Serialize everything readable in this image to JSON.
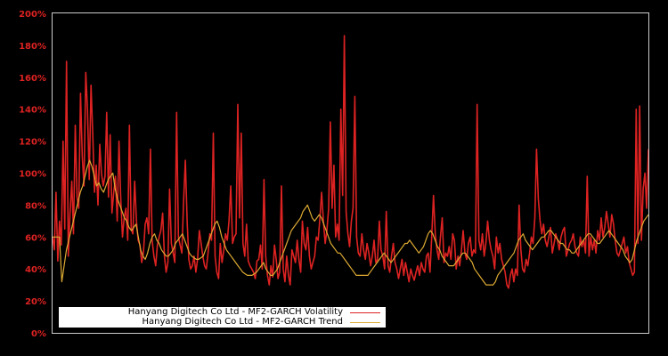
{
  "chart_data": {
    "type": "line",
    "title": "",
    "xlabel": "",
    "ylabel": "",
    "ylim": [
      0,
      200
    ],
    "y_ticks": [
      "0%",
      "20%",
      "40%",
      "60%",
      "80%",
      "100%",
      "120%",
      "140%",
      "160%",
      "180%",
      "200%"
    ],
    "x_ticks": [],
    "grid": false,
    "legend_position": "lower left",
    "background": "#000000",
    "frame_color": "#cccccc",
    "tick_label_color": "#dd2222",
    "series": [
      {
        "name": "Hanyang Digitech Co Ltd - MF2-GARCH Volatility",
        "color": "#dd2222",
        "values": [
          60,
          52,
          88,
          45,
          70,
          55,
          120,
          65,
          170,
          48,
          75,
          95,
          62,
          130,
          85,
          78,
          150,
          110,
          92,
          163,
          140,
          96,
          155,
          125,
          88,
          105,
          80,
          118,
          100,
          92,
          98,
          138,
          85,
          124,
          75,
          88,
          98,
          70,
          120,
          85,
          60,
          72,
          78,
          58,
          130,
          65,
          62,
          95,
          70,
          58,
          55,
          44,
          50,
          68,
          72,
          62,
          115,
          58,
          48,
          42,
          55,
          60,
          64,
          75,
          48,
          38,
          44,
          90,
          56,
          50,
          44,
          138,
          60,
          55,
          50,
          82,
          108,
          70,
          46,
          40,
          42,
          48,
          38,
          46,
          64,
          56,
          48,
          42,
          40,
          50,
          62,
          58,
          125,
          48,
          38,
          34,
          56,
          44,
          52,
          62,
          58,
          70,
          92,
          56,
          60,
          62,
          143,
          72,
          125,
          56,
          48,
          68,
          45,
          42,
          40,
          38,
          34,
          45,
          46,
          55,
          40,
          96,
          48,
          36,
          30,
          42,
          35,
          55,
          46,
          34,
          38,
          92,
          40,
          32,
          48,
          36,
          30,
          52,
          48,
          44,
          58,
          46,
          38,
          70,
          56,
          52,
          66,
          48,
          40,
          44,
          48,
          60,
          58,
          72,
          88,
          70,
          56,
          64,
          78,
          132,
          78,
          105,
          60,
          68,
          58,
          140,
          86,
          186,
          76,
          62,
          54,
          70,
          78,
          148,
          60,
          50,
          48,
          62,
          52,
          46,
          56,
          50,
          42,
          48,
          58,
          44,
          46,
          70,
          52,
          48,
          40,
          76,
          42,
          38,
          48,
          56,
          44,
          40,
          34,
          40,
          46,
          36,
          44,
          38,
          32,
          40,
          36,
          33,
          38,
          42,
          36,
          44,
          40,
          38,
          48,
          50,
          38,
          60,
          86,
          62,
          52,
          46,
          60,
          72,
          44,
          50,
          48,
          54,
          46,
          62,
          58,
          40,
          48,
          42,
          52,
          64,
          50,
          46,
          56,
          60,
          48,
          52,
          50,
          143,
          58,
          52,
          62,
          48,
          56,
          70,
          58,
          52,
          48,
          40,
          60,
          50,
          56,
          46,
          42,
          38,
          30,
          28,
          36,
          40,
          32,
          40,
          36,
          80,
          52,
          40,
          38,
          46,
          42,
          50,
          60,
          56,
          72,
          115,
          84,
          70,
          62,
          68,
          58,
          54,
          60,
          66,
          50,
          56,
          62,
          58,
          52,
          60,
          64,
          66,
          48,
          52,
          56,
          58,
          62,
          54,
          50,
          48,
          60,
          54,
          58,
          50,
          98,
          48,
          60,
          52,
          58,
          50,
          64,
          58,
          72,
          60,
          66,
          76,
          68,
          60,
          74,
          68,
          58,
          50,
          48,
          52,
          56,
          60,
          50,
          54,
          44,
          40,
          36,
          38,
          140,
          56,
          142,
          58,
          90,
          100,
          78,
          115
        ]
      },
      {
        "name": "Hanyang Digitech Co Ltd - MF2-GARCH Trend",
        "color": "#ddaa33",
        "values": [
          60,
          60,
          60,
          60,
          32,
          42,
          52,
          58,
          64,
          70,
          76,
          82,
          88,
          92,
          98,
          104,
          108,
          104,
          98,
          92,
          94,
          90,
          88,
          92,
          96,
          98,
          100,
          90,
          84,
          80,
          76,
          72,
          70,
          66,
          64,
          66,
          68,
          60,
          52,
          48,
          46,
          50,
          56,
          60,
          62,
          58,
          56,
          52,
          50,
          48,
          48,
          50,
          52,
          56,
          58,
          60,
          62,
          58,
          54,
          50,
          48,
          47,
          46,
          46,
          47,
          48,
          52,
          56,
          60,
          64,
          68,
          70,
          66,
          60,
          56,
          52,
          50,
          48,
          46,
          44,
          42,
          40,
          38,
          37,
          36,
          36,
          36,
          37,
          38,
          40,
          42,
          44,
          40,
          38,
          36,
          36,
          38,
          40,
          44,
          48,
          52,
          56,
          60,
          64,
          66,
          68,
          70,
          72,
          76,
          78,
          80,
          76,
          72,
          70,
          72,
          74,
          72,
          68,
          64,
          60,
          56,
          54,
          52,
          50,
          50,
          48,
          46,
          44,
          42,
          40,
          38,
          36,
          36,
          36,
          36,
          36,
          36,
          38,
          40,
          42,
          44,
          46,
          48,
          50,
          48,
          46,
          44,
          46,
          48,
          50,
          52,
          54,
          56,
          56,
          58,
          56,
          54,
          52,
          50,
          52,
          54,
          58,
          62,
          64,
          62,
          58,
          54,
          52,
          48,
          46,
          44,
          42,
          42,
          42,
          44,
          46,
          48,
          50,
          50,
          48,
          46,
          44,
          40,
          38,
          36,
          34,
          32,
          30,
          30,
          30,
          30,
          32,
          36,
          38,
          40,
          42,
          44,
          46,
          48,
          50,
          54,
          58,
          60,
          62,
          58,
          56,
          54,
          52,
          54,
          56,
          58,
          60,
          60,
          62,
          64,
          64,
          62,
          60,
          58,
          56,
          56,
          54,
          52,
          52,
          50,
          50,
          52,
          54,
          56,
          58,
          60,
          62,
          62,
          60,
          58,
          56,
          56,
          58,
          60,
          62,
          64,
          62,
          60,
          58,
          56,
          54,
          52,
          48,
          46,
          44,
          46,
          52,
          58,
          62,
          66,
          70,
          72,
          74
        ]
      }
    ]
  },
  "y_axis": {
    "labels": [
      "200%",
      "180%",
      "160%",
      "140%",
      "120%",
      "100%",
      "80%",
      "60%",
      "40%",
      "20%",
      "0%"
    ]
  },
  "legend": {
    "items": [
      {
        "label": "Hanyang Digitech Co Ltd - MF2-GARCH Volatility",
        "color": "#dd2222"
      },
      {
        "label": "Hanyang Digitech Co Ltd - MF2-GARCH Trend",
        "color": "#ddaa33"
      }
    ]
  }
}
